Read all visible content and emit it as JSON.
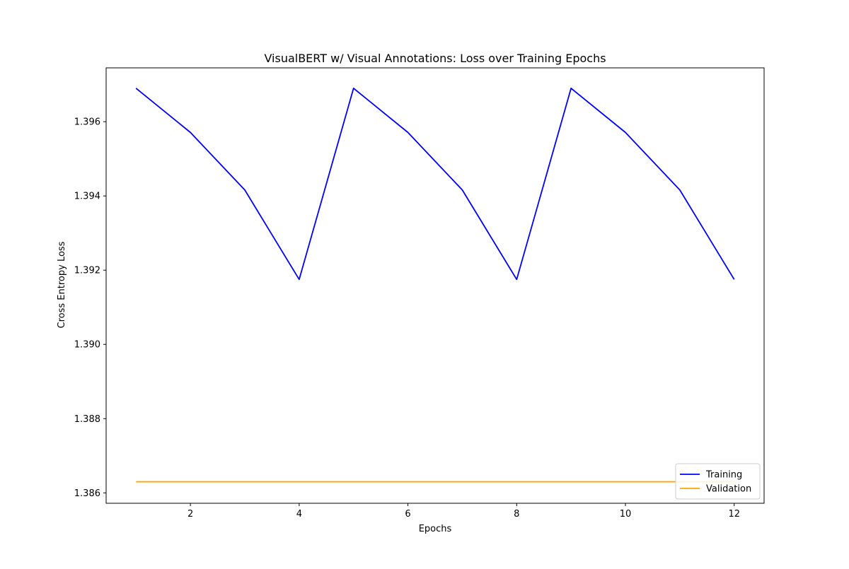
{
  "chart_data": {
    "type": "line",
    "title": "VisualBERT w/ Visual Annotations: Loss over Training Epochs",
    "xlabel": "Epochs",
    "ylabel": "Cross Entropy Loss",
    "x": [
      1,
      2,
      3,
      4,
      5,
      6,
      7,
      8,
      9,
      10,
      11,
      12
    ],
    "xlim": [
      0.45,
      12.55
    ],
    "ylim": [
      1.38572,
      1.39745
    ],
    "xticks": [
      2,
      4,
      6,
      8,
      10,
      12
    ],
    "yticks": [
      1.386,
      1.388,
      1.39,
      1.392,
      1.394,
      1.396
    ],
    "xtick_labels": [
      "2",
      "4",
      "6",
      "8",
      "10",
      "12"
    ],
    "ytick_labels": [
      "1.386",
      "1.388",
      "1.390",
      "1.392",
      "1.394",
      "1.396"
    ],
    "grid": false,
    "legend_position": "lower right",
    "series": [
      {
        "name": "Training",
        "color": "#0000ff",
        "values": [
          1.3969,
          1.39571,
          1.39416,
          1.39175,
          1.3969,
          1.39571,
          1.39416,
          1.39175,
          1.3969,
          1.39571,
          1.39416,
          1.39175
        ]
      },
      {
        "name": "Validation",
        "color": "#ffa500",
        "values": [
          1.3863,
          1.3863,
          1.3863,
          1.3863,
          1.3863,
          1.3863,
          1.3863,
          1.3863,
          1.3863,
          1.3863,
          1.3863,
          1.3863
        ]
      }
    ]
  }
}
